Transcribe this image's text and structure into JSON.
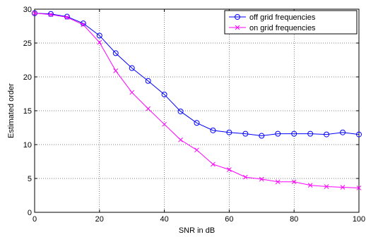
{
  "chart_data": {
    "type": "line",
    "title": "",
    "xlabel": "SNR in dB",
    "ylabel": "Estimated order",
    "xlim": [
      0,
      100
    ],
    "ylim": [
      0,
      30
    ],
    "xticks": [
      0,
      20,
      40,
      60,
      80,
      100
    ],
    "yticks": [
      0,
      5,
      10,
      15,
      20,
      25,
      30
    ],
    "grid": true,
    "legend_position": "top-right",
    "x": [
      0,
      5,
      10,
      15,
      20,
      25,
      30,
      35,
      40,
      45,
      50,
      55,
      60,
      65,
      70,
      75,
      80,
      85,
      90,
      95,
      100
    ],
    "series": [
      {
        "name": "off grid frequencies",
        "color": "#0000ff",
        "marker": "circle",
        "values": [
          29.4,
          29.3,
          28.9,
          27.9,
          26.1,
          23.5,
          21.3,
          19.4,
          17.4,
          14.9,
          13.2,
          12.1,
          11.8,
          11.6,
          11.3,
          11.6,
          11.6,
          11.6,
          11.5,
          11.8,
          11.5
        ]
      },
      {
        "name": "on grid frequencies",
        "color": "#ff00ff",
        "marker": "x",
        "values": [
          29.4,
          29.2,
          28.8,
          27.7,
          25.1,
          20.9,
          17.7,
          15.3,
          13.0,
          10.7,
          9.2,
          7.1,
          6.3,
          5.2,
          4.9,
          4.5,
          4.5,
          4.0,
          3.8,
          3.7,
          3.6
        ]
      }
    ]
  }
}
